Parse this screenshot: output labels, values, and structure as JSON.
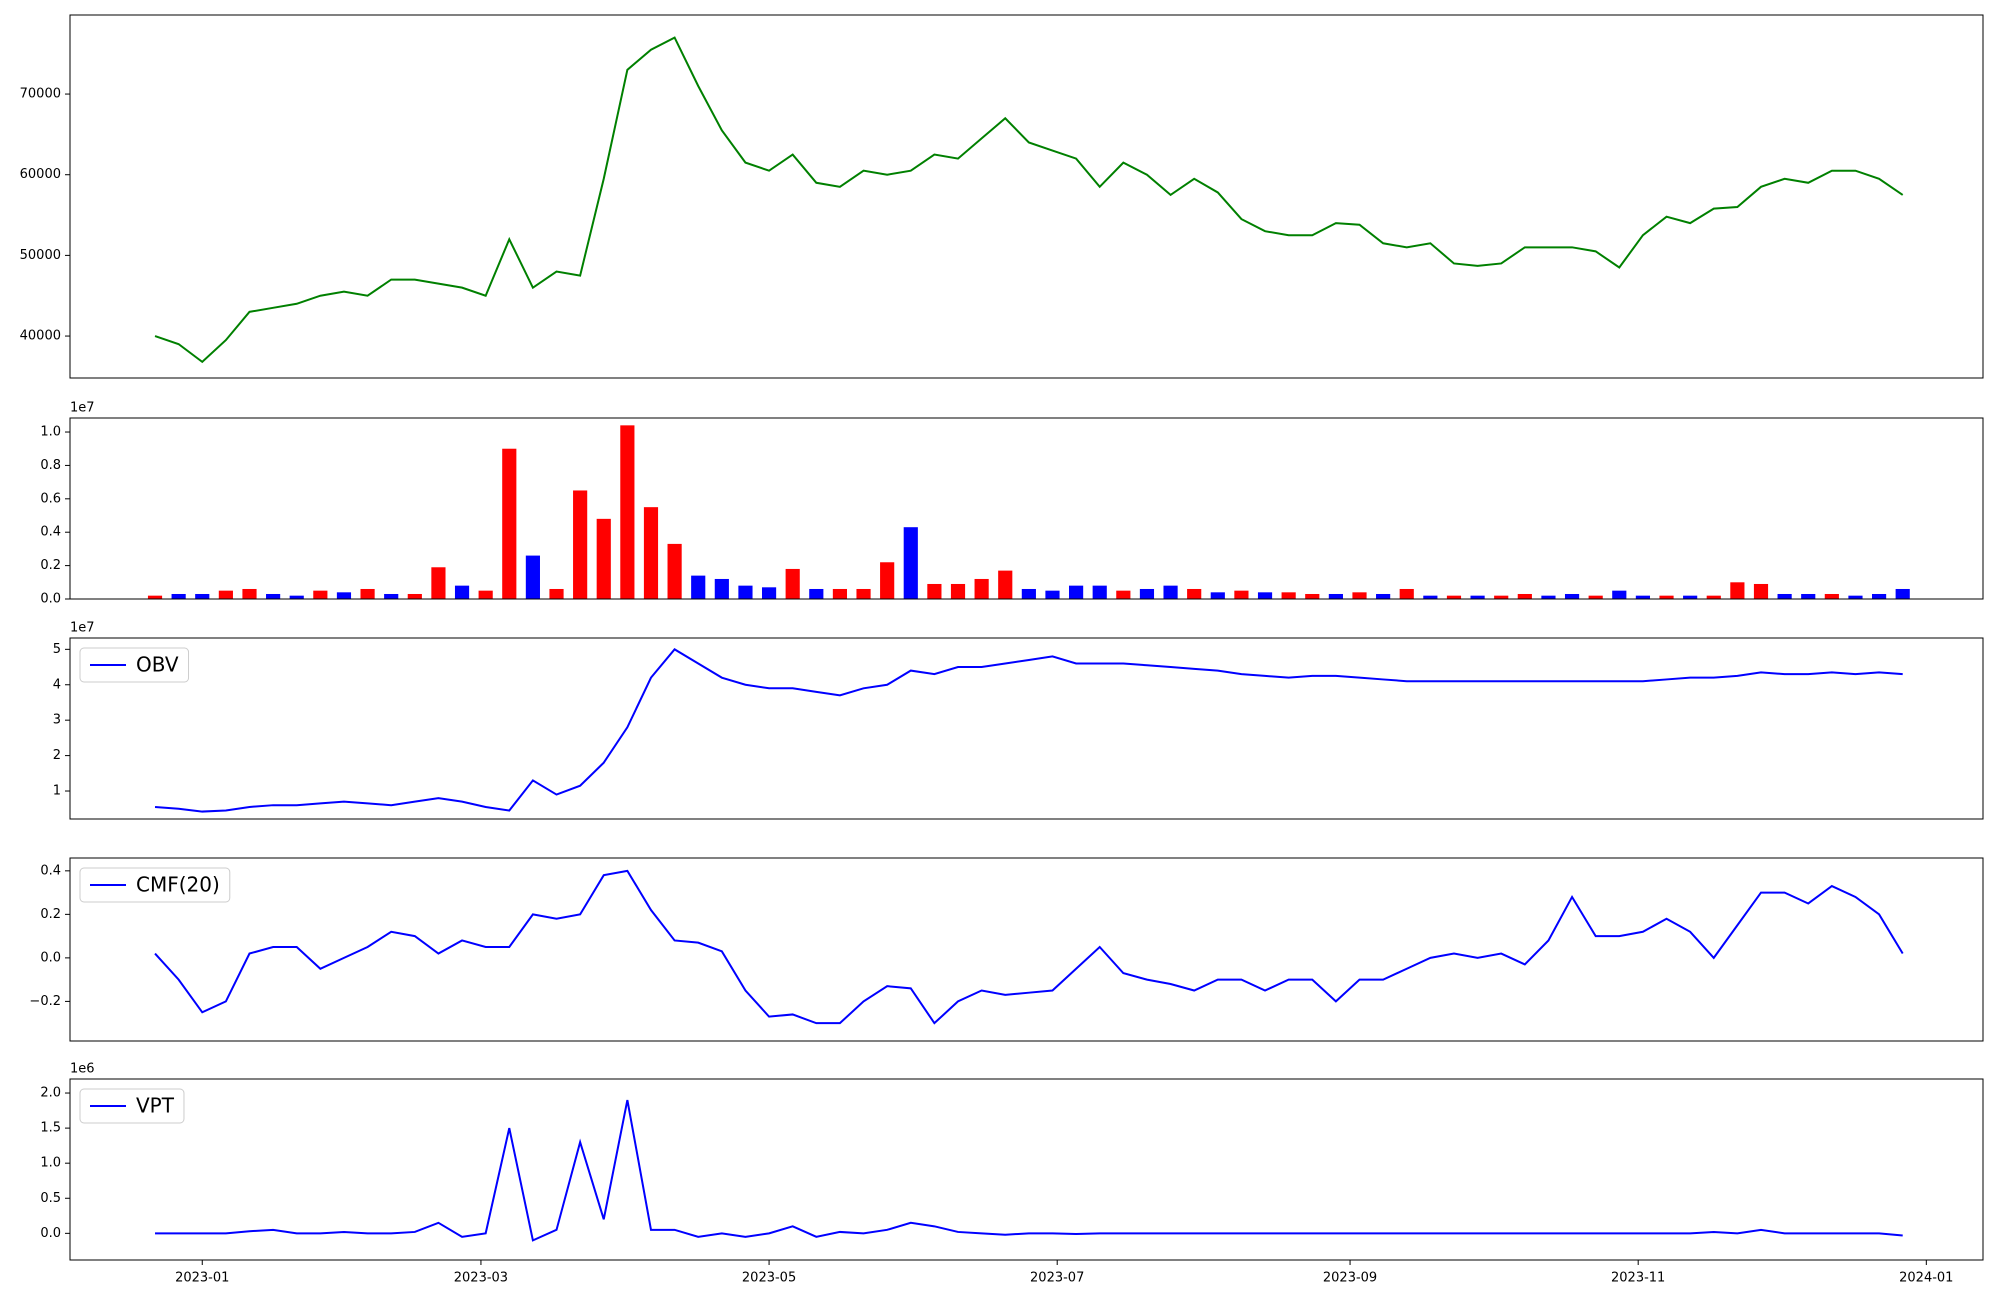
{
  "chart_data": [
    {
      "type": "line",
      "color": "green",
      "x": [
        19348,
        19353,
        19358,
        19363,
        19368,
        19373,
        19378,
        19383,
        19388,
        19393,
        19398,
        19403,
        19408,
        19413,
        19418,
        19423,
        19428,
        19433,
        19438,
        19443,
        19448,
        19453,
        19458,
        19463,
        19468,
        19473,
        19478,
        19483,
        19488,
        19493,
        19498,
        19503,
        19508,
        19513,
        19518,
        19523,
        19528,
        19533,
        19538,
        19543,
        19548,
        19553,
        19558,
        19563,
        19568,
        19573,
        19578,
        19583,
        19588,
        19593,
        19598,
        19603,
        19608,
        19613,
        19618,
        19623,
        19628,
        19633,
        19638,
        19643,
        19648,
        19653,
        19658,
        19663,
        19668,
        19673,
        19678,
        19683,
        19688,
        19693,
        19698,
        19703,
        19708,
        19713,
        19718
      ],
      "values": [
        40000,
        39000,
        36800,
        39500,
        43000,
        43500,
        44000,
        45000,
        45500,
        45000,
        47000,
        47000,
        46500,
        46000,
        45000,
        52000,
        46000,
        48000,
        47500,
        59500,
        73000,
        75500,
        77000,
        71000,
        65500,
        61500,
        60500,
        62500,
        59000,
        58500,
        60500,
        60000,
        60500,
        62500,
        62000,
        64500,
        67000,
        64000,
        63000,
        62000,
        58500,
        61500,
        60000,
        57500,
        59500,
        57800,
        54500,
        53000,
        52500,
        52500,
        54000,
        53800,
        51500,
        51000,
        51500,
        49000,
        48700,
        49000,
        51000,
        51000,
        51000,
        50500,
        48500,
        52500,
        54800,
        54000,
        55800,
        56000,
        58500,
        59500,
        59000,
        60500,
        60500,
        59500,
        57500
      ],
      "xlim": [
        19330,
        19735
      ],
      "ylim": [
        34800,
        79800
      ],
      "yticks": [
        40000,
        50000,
        60000,
        70000
      ]
    },
    {
      "type": "bar",
      "offset_label": "1e7",
      "x": [
        19348,
        19353,
        19358,
        19363,
        19368,
        19373,
        19378,
        19383,
        19388,
        19393,
        19398,
        19403,
        19408,
        19413,
        19418,
        19423,
        19428,
        19433,
        19438,
        19443,
        19448,
        19453,
        19458,
        19463,
        19468,
        19473,
        19478,
        19483,
        19488,
        19493,
        19498,
        19503,
        19508,
        19513,
        19518,
        19523,
        19528,
        19533,
        19538,
        19543,
        19548,
        19553,
        19558,
        19563,
        19568,
        19573,
        19578,
        19583,
        19588,
        19593,
        19598,
        19603,
        19608,
        19613,
        19618,
        19623,
        19628,
        19633,
        19638,
        19643,
        19648,
        19653,
        19658,
        19663,
        19668,
        19673,
        19678,
        19683,
        19688,
        19693,
        19698,
        19703,
        19708,
        19713,
        19718
      ],
      "values": [
        200000,
        300000,
        300000,
        500000,
        600000,
        300000,
        200000,
        500000,
        400000,
        600000,
        300000,
        300000,
        1900000,
        800000,
        500000,
        9000000,
        2600000,
        600000,
        6500000,
        4800000,
        10400000,
        5500000,
        3300000,
        1400000,
        1200000,
        800000,
        700000,
        1800000,
        600000,
        600000,
        600000,
        2200000,
        4300000,
        900000,
        900000,
        1200000,
        1700000,
        600000,
        500000,
        800000,
        800000,
        500000,
        600000,
        800000,
        600000,
        400000,
        500000,
        400000,
        400000,
        300000,
        300000,
        400000,
        300000,
        600000,
        200000,
        200000,
        200000,
        200000,
        300000,
        200000,
        300000,
        200000,
        500000,
        200000,
        200000,
        200000,
        200000,
        1000000,
        900000,
        300000,
        300000,
        300000,
        200000,
        300000,
        600000
      ],
      "colors": [
        "red",
        "blue",
        "blue",
        "red",
        "red",
        "blue",
        "blue",
        "red",
        "blue",
        "red",
        "blue",
        "red",
        "red",
        "blue",
        "red",
        "red",
        "blue",
        "red",
        "red",
        "red",
        "red",
        "red",
        "red",
        "blue",
        "blue",
        "blue",
        "blue",
        "red",
        "blue",
        "red",
        "red",
        "red",
        "blue",
        "red",
        "red",
        "red",
        "red",
        "blue",
        "blue",
        "blue",
        "blue",
        "red",
        "blue",
        "blue",
        "red",
        "blue",
        "red",
        "blue",
        "red",
        "red",
        "blue",
        "red",
        "blue",
        "red",
        "blue",
        "red",
        "blue",
        "red",
        "red",
        "blue",
        "blue",
        "red",
        "blue",
        "blue",
        "red",
        "blue",
        "red",
        "red",
        "red",
        "blue",
        "blue",
        "red",
        "blue",
        "blue",
        "blue"
      ],
      "xlim": [
        19330,
        19735
      ],
      "ylim": [
        0,
        10840000
      ],
      "yticks": [
        {
          "value": 0,
          "label": "0.0"
        },
        {
          "value": 2000000,
          "label": "0.2"
        },
        {
          "value": 4000000,
          "label": "0.4"
        },
        {
          "value": 6000000,
          "label": "0.6"
        },
        {
          "value": 8000000,
          "label": "0.8"
        },
        {
          "value": 10000000,
          "label": "1.0"
        }
      ]
    },
    {
      "type": "line",
      "offset_label": "1e7",
      "legend": "upper left",
      "x": [
        19348,
        19353,
        19358,
        19363,
        19368,
        19373,
        19378,
        19383,
        19388,
        19393,
        19398,
        19403,
        19408,
        19413,
        19418,
        19423,
        19428,
        19433,
        19438,
        19443,
        19448,
        19453,
        19458,
        19463,
        19468,
        19473,
        19478,
        19483,
        19488,
        19493,
        19498,
        19503,
        19508,
        19513,
        19518,
        19523,
        19528,
        19533,
        19538,
        19543,
        19548,
        19553,
        19558,
        19563,
        19568,
        19573,
        19578,
        19583,
        19588,
        19593,
        19598,
        19603,
        19608,
        19613,
        19618,
        19623,
        19628,
        19633,
        19638,
        19643,
        19648,
        19653,
        19658,
        19663,
        19668,
        19673,
        19678,
        19683,
        19688,
        19693,
        19698,
        19703,
        19708,
        19713,
        19718
      ],
      "series": [
        {
          "name": "OBV",
          "color": "blue",
          "values": [
            5500000,
            5000000,
            4200000,
            4500000,
            5500000,
            6000000,
            6000000,
            6500000,
            7000000,
            6500000,
            6000000,
            7000000,
            8000000,
            7000000,
            5500000,
            4500000,
            13000000,
            9000000,
            11500000,
            18000000,
            28000000,
            42000000,
            50000000,
            46000000,
            42000000,
            40000000,
            39000000,
            39000000,
            38000000,
            37000000,
            39000000,
            40000000,
            44000000,
            43000000,
            45000000,
            45000000,
            46000000,
            47000000,
            48000000,
            46000000,
            46000000,
            46000000,
            45500000,
            45000000,
            44500000,
            44000000,
            43000000,
            42500000,
            42000000,
            42500000,
            42500000,
            42000000,
            41500000,
            41000000,
            41000000,
            41000000,
            41000000,
            41000000,
            41000000,
            41000000,
            41000000,
            41000000,
            41000000,
            41000000,
            41500000,
            42000000,
            42000000,
            42500000,
            43500000,
            43000000,
            43000000,
            43500000,
            43000000,
            43500000,
            43000000
          ]
        }
      ],
      "xlim": [
        19330,
        19735
      ],
      "ylim": [
        2100000,
        53200000
      ],
      "yticks": [
        {
          "value": 10000000,
          "label": "1"
        },
        {
          "value": 20000000,
          "label": "2"
        },
        {
          "value": 30000000,
          "label": "3"
        },
        {
          "value": 40000000,
          "label": "4"
        },
        {
          "value": 50000000,
          "label": "5"
        }
      ]
    },
    {
      "type": "line",
      "legend": "upper left",
      "x": [
        19348,
        19353,
        19358,
        19363,
        19368,
        19373,
        19378,
        19383,
        19388,
        19393,
        19398,
        19403,
        19408,
        19413,
        19418,
        19423,
        19428,
        19433,
        19438,
        19443,
        19448,
        19453,
        19458,
        19463,
        19468,
        19473,
        19478,
        19483,
        19488,
        19493,
        19498,
        19503,
        19508,
        19513,
        19518,
        19523,
        19528,
        19533,
        19538,
        19543,
        19548,
        19553,
        19558,
        19563,
        19568,
        19573,
        19578,
        19583,
        19588,
        19593,
        19598,
        19603,
        19608,
        19613,
        19618,
        19623,
        19628,
        19633,
        19638,
        19643,
        19648,
        19653,
        19658,
        19663,
        19668,
        19673,
        19678,
        19683,
        19688,
        19693,
        19698,
        19703,
        19708,
        19713,
        19718
      ],
      "series": [
        {
          "name": "CMF(20)",
          "color": "blue",
          "values": [
            0.02,
            -0.1,
            -0.25,
            -0.2,
            0.02,
            0.05,
            0.05,
            -0.05,
            0,
            0.05,
            0.12,
            0.1,
            0.02,
            0.08,
            0.05,
            0.05,
            0.2,
            0.18,
            0.2,
            0.38,
            0.4,
            0.22,
            0.08,
            0.07,
            0.03,
            -0.15,
            -0.27,
            -0.26,
            -0.3,
            -0.3,
            -0.2,
            -0.13,
            -0.14,
            -0.3,
            -0.2,
            -0.15,
            -0.17,
            -0.16,
            -0.15,
            -0.05,
            0.05,
            -0.07,
            -0.1,
            -0.12,
            -0.15,
            -0.1,
            -0.1,
            -0.15,
            -0.1,
            -0.1,
            -0.2,
            -0.1,
            -0.1,
            -0.05,
            0,
            0.02,
            0,
            0.02,
            -0.03,
            0.08,
            0.28,
            0.1,
            0.1,
            0.12,
            0.18,
            0.12,
            0,
            0.15,
            0.3,
            0.3,
            0.25,
            0.33,
            0.28,
            0.2,
            0.02
          ]
        }
      ],
      "xlim": [
        19330,
        19735
      ],
      "ylim": [
        -0.382,
        0.459
      ],
      "yticks": [
        {
          "value": -0.2,
          "label": "−0.2"
        },
        {
          "value": 0,
          "label": "0.0"
        },
        0.2,
        0.4
      ]
    },
    {
      "type": "line",
      "offset_label": "1e6",
      "legend": "upper left",
      "x": [
        19348,
        19353,
        19358,
        19363,
        19368,
        19373,
        19378,
        19383,
        19388,
        19393,
        19398,
        19403,
        19408,
        19413,
        19418,
        19423,
        19428,
        19433,
        19438,
        19443,
        19448,
        19453,
        19458,
        19463,
        19468,
        19473,
        19478,
        19483,
        19488,
        19493,
        19498,
        19503,
        19508,
        19513,
        19518,
        19523,
        19528,
        19533,
        19538,
        19543,
        19548,
        19553,
        19558,
        19563,
        19568,
        19573,
        19578,
        19583,
        19588,
        19593,
        19598,
        19603,
        19608,
        19613,
        19618,
        19623,
        19628,
        19633,
        19638,
        19643,
        19648,
        19653,
        19658,
        19663,
        19668,
        19673,
        19678,
        19683,
        19688,
        19693,
        19698,
        19703,
        19708,
        19713,
        19718
      ],
      "series": [
        {
          "name": "VPT",
          "color": "blue",
          "values": [
            0,
            0,
            0,
            0,
            30000,
            50000,
            0,
            0,
            20000,
            0,
            0,
            20000,
            150000,
            -50000,
            0,
            1500000,
            -100000,
            50000,
            1300000,
            200000,
            1900000,
            50000,
            50000,
            -50000,
            0,
            -50000,
            0,
            100000,
            -50000,
            20000,
            0,
            50000,
            150000,
            100000,
            20000,
            0,
            -20000,
            0,
            0,
            -10000,
            0,
            0,
            0,
            0,
            0,
            0,
            0,
            0,
            0,
            0,
            0,
            0,
            0,
            0,
            0,
            0,
            0,
            0,
            0,
            0,
            0,
            0,
            0,
            0,
            0,
            0,
            20000,
            0,
            50000,
            0,
            0,
            0,
            0,
            0,
            -30000
          ]
        }
      ],
      "xlim": [
        19330,
        19735
      ],
      "ylim": [
        -380000,
        2200000
      ],
      "yticks": [
        {
          "value": 0,
          "label": "0.0"
        },
        {
          "value": 500000,
          "label": "0.5"
        },
        {
          "value": 1000000,
          "label": "1.0"
        },
        {
          "value": 1500000,
          "label": "1.5"
        },
        {
          "value": 2000000,
          "label": "2.0"
        }
      ],
      "xticks": [
        {
          "value": 19358,
          "label": "2023-01"
        },
        {
          "value": 19417,
          "label": "2023-03"
        },
        {
          "value": 19478,
          "label": "2023-05"
        },
        {
          "value": 19539,
          "label": "2023-07"
        },
        {
          "value": 19601,
          "label": "2023-09"
        },
        {
          "value": 19662,
          "label": "2023-11"
        },
        {
          "value": 19723,
          "label": "2024-01"
        }
      ]
    }
  ]
}
